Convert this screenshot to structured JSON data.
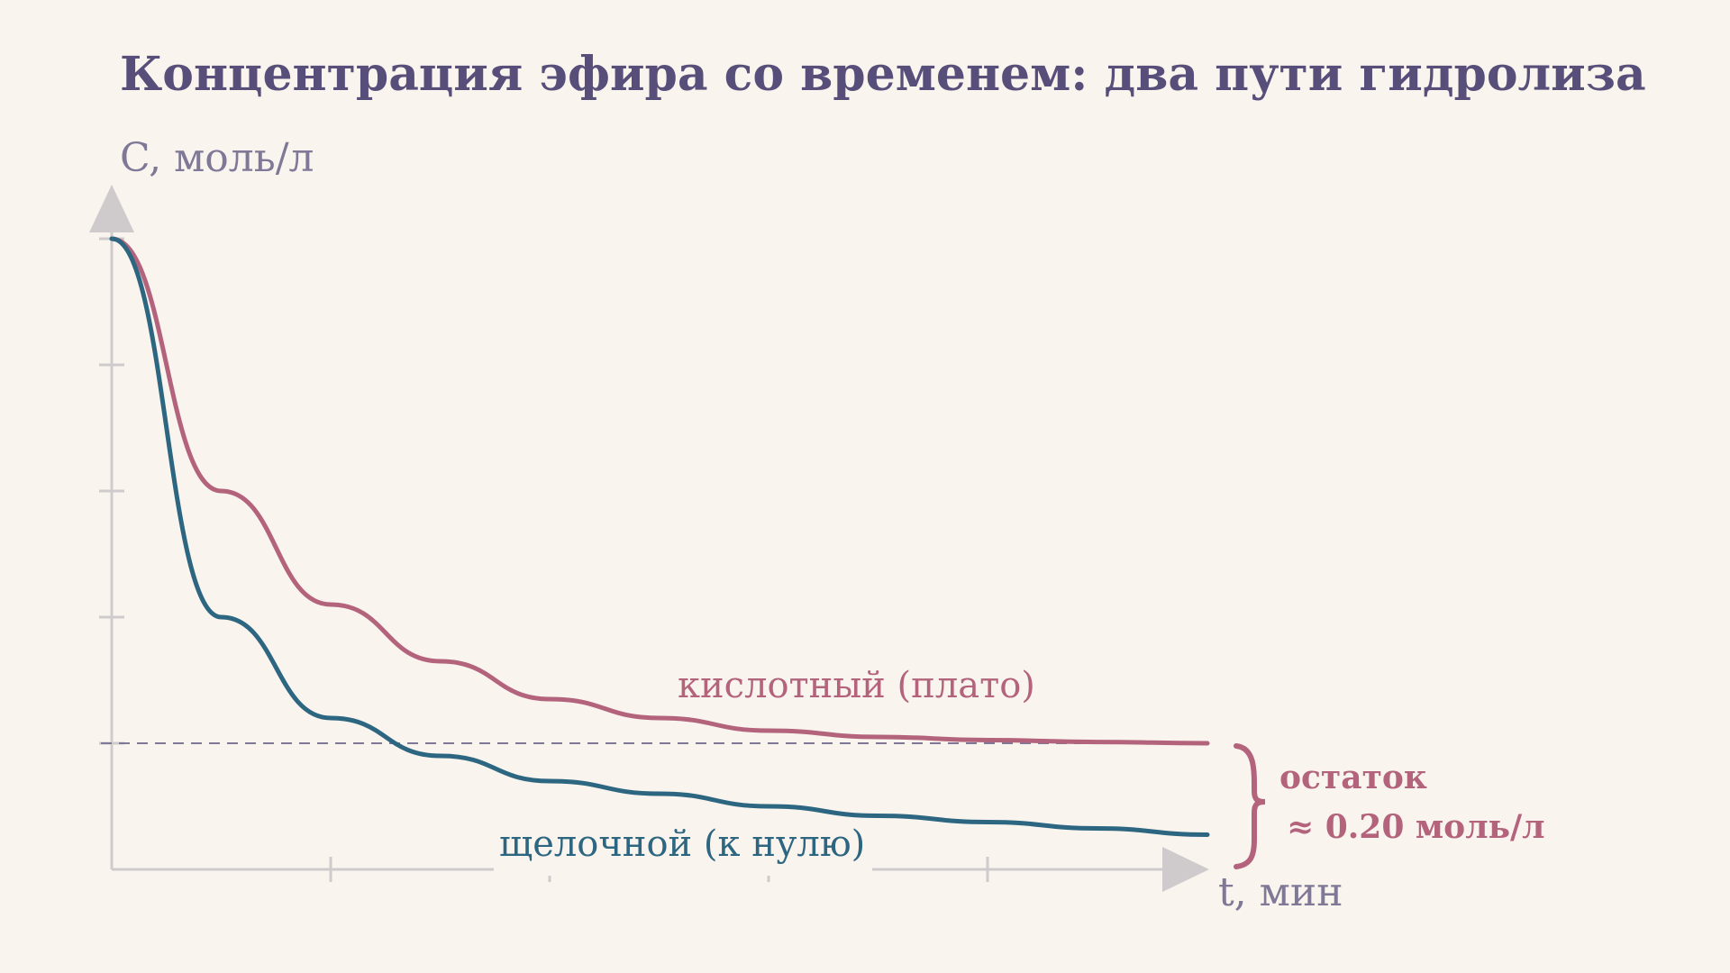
{
  "colors": {
    "background": "#faf4ef",
    "title": "#574f7a",
    "axis": "#cfcbcd",
    "axis_label": "#7f7896",
    "acid": "#b3647c",
    "base": "#2d6680",
    "dashed": "#7f7896"
  },
  "chart_data": {
    "type": "line",
    "title": "Концентрация эфира со временем: два пути гидролиза",
    "ylabel": "C, моль/л",
    "xlabel": "t, мин",
    "x_tick_count": 4,
    "y_tick_count": 5,
    "grid": false,
    "series": [
      {
        "name": "кислотный (плато)",
        "color": "#b3647c",
        "label_text": "кислотный (плато)",
        "x": [
          0,
          0.1,
          0.2,
          0.3,
          0.4,
          0.5,
          0.6,
          0.7,
          0.8,
          0.9,
          1.0
        ],
        "values": [
          1.0,
          0.6,
          0.42,
          0.33,
          0.27,
          0.24,
          0.22,
          0.21,
          0.205,
          0.202,
          0.2
        ]
      },
      {
        "name": "щелочной (к нулю)",
        "color": "#2d6680",
        "label_text": "щелочной (к нулю)",
        "x": [
          0,
          0.1,
          0.2,
          0.3,
          0.4,
          0.5,
          0.6,
          0.7,
          0.8,
          0.9,
          1.0
        ],
        "values": [
          1.0,
          0.4,
          0.24,
          0.18,
          0.14,
          0.12,
          0.1,
          0.085,
          0.075,
          0.065,
          0.055
        ]
      }
    ],
    "reference_line": {
      "y": 0.2,
      "style": "dashed"
    },
    "annotation": {
      "line1": "остаток",
      "line2": "≈  0.20 моль/л"
    }
  }
}
